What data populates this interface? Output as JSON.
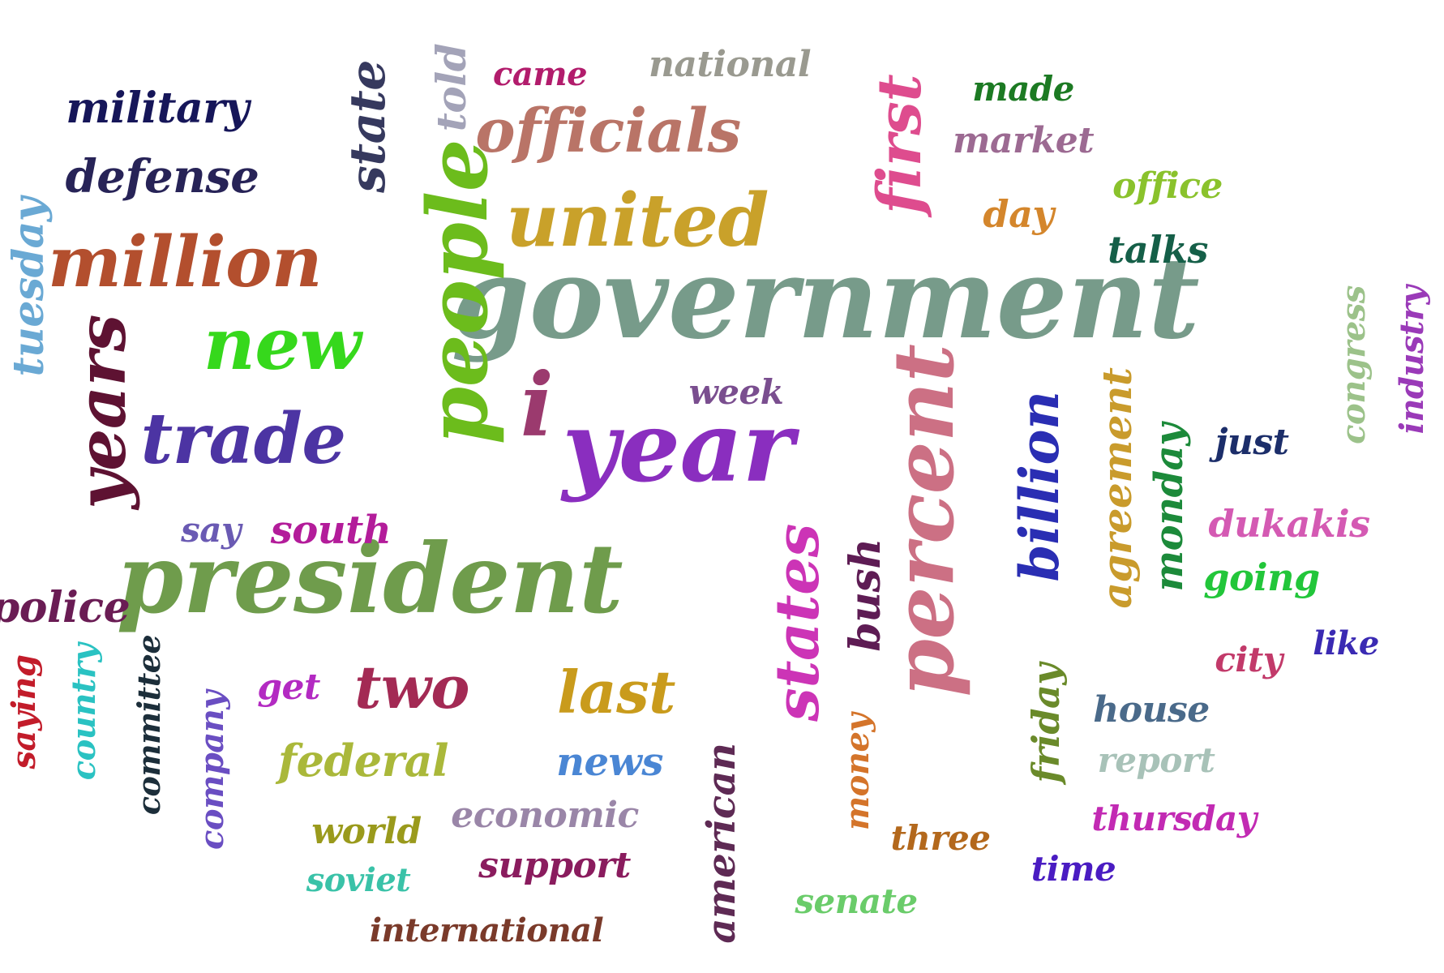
{
  "words": [
    {
      "text": "government",
      "color": "#779b8a"
    },
    {
      "text": "year",
      "color": "#8a2ebf"
    },
    {
      "text": "president",
      "color": "#6f9c4c"
    },
    {
      "text": "people",
      "color": "#6cbc1c"
    },
    {
      "text": "percent",
      "color": "#cc7084"
    },
    {
      "text": "united",
      "color": "#c9a12a"
    },
    {
      "text": "million",
      "color": "#b34f2e"
    },
    {
      "text": "trade",
      "color": "#4c34a3"
    },
    {
      "text": "new",
      "color": "#36d81c"
    },
    {
      "text": "i",
      "color": "#9b3a6e"
    },
    {
      "text": "years",
      "color": "#5e1232"
    },
    {
      "text": "officials",
      "color": "#b97467"
    },
    {
      "text": "states",
      "color": "#cc34b6"
    },
    {
      "text": "first",
      "color": "#de4c8e"
    },
    {
      "text": "two",
      "color": "#a32a54"
    },
    {
      "text": "last",
      "color": "#c99b1c"
    },
    {
      "text": "billion",
      "color": "#2a2eb3"
    },
    {
      "text": "state",
      "color": "#36395e"
    },
    {
      "text": "defense",
      "color": "#272357"
    },
    {
      "text": "military",
      "color": "#161659"
    },
    {
      "text": "tuesday",
      "color": "#6aa9d4"
    },
    {
      "text": "told",
      "color": "#a3a3b8"
    },
    {
      "text": "came",
      "color": "#b21c6c"
    },
    {
      "text": "national",
      "color": "#9a9a90"
    },
    {
      "text": "made",
      "color": "#1c7a23"
    },
    {
      "text": "market",
      "color": "#9c6a92"
    },
    {
      "text": "office",
      "color": "#8ac22c"
    },
    {
      "text": "day",
      "color": "#d4862c"
    },
    {
      "text": "talks",
      "color": "#155f48"
    },
    {
      "text": "week",
      "color": "#7a4e8f"
    },
    {
      "text": "bush",
      "color": "#5e1c54"
    },
    {
      "text": "agreement",
      "color": "#c99b2c"
    },
    {
      "text": "monday",
      "color": "#1c8a3a"
    },
    {
      "text": "just",
      "color": "#1c2e6a"
    },
    {
      "text": "dukakis",
      "color": "#d45ab3"
    },
    {
      "text": "going",
      "color": "#22c63a"
    },
    {
      "text": "congress",
      "color": "#9cc28a"
    },
    {
      "text": "industry",
      "color": "#9a3ab8"
    },
    {
      "text": "city",
      "color": "#c23a6a"
    },
    {
      "text": "like",
      "color": "#3a2ab3"
    },
    {
      "text": "say",
      "color": "#6a5ab3"
    },
    {
      "text": "south",
      "color": "#b31c9a"
    },
    {
      "text": "police",
      "color": "#6a1c54"
    },
    {
      "text": "saying",
      "color": "#c21c2a"
    },
    {
      "text": "country",
      "color": "#2ac2c2"
    },
    {
      "text": "committee",
      "color": "#1c2e3a"
    },
    {
      "text": "company",
      "color": "#6a4ec2"
    },
    {
      "text": "get",
      "color": "#b32ac2"
    },
    {
      "text": "federal",
      "color": "#aab83a"
    },
    {
      "text": "news",
      "color": "#4a86d4"
    },
    {
      "text": "economic",
      "color": "#9a86a8"
    },
    {
      "text": "world",
      "color": "#9a9a1c"
    },
    {
      "text": "soviet",
      "color": "#3ac2a8"
    },
    {
      "text": "support",
      "color": "#8a1c5e"
    },
    {
      "text": "international",
      "color": "#7a3a2a"
    },
    {
      "text": "american",
      "color": "#5e2a54"
    },
    {
      "text": "money",
      "color": "#d4742a"
    },
    {
      "text": "three",
      "color": "#b3681c"
    },
    {
      "text": "senate",
      "color": "#6acc6a"
    },
    {
      "text": "friday",
      "color": "#6a8a2a"
    },
    {
      "text": "house",
      "color": "#4a6a8a"
    },
    {
      "text": "report",
      "color": "#a8c2b8"
    },
    {
      "text": "thursday",
      "color": "#c22ab3"
    },
    {
      "text": "time",
      "color": "#4a1cc2"
    }
  ]
}
